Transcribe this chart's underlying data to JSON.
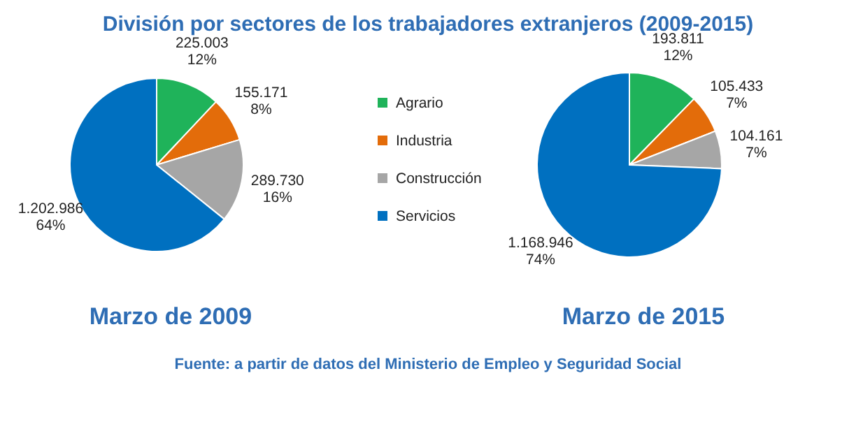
{
  "chart_data": [
    {
      "type": "pie",
      "title": "División por sectores de los trabajadores extranjeros (2009-2015)",
      "subtitle": "Marzo de 2009",
      "categories": [
        "Agrario",
        "Industria",
        "Construcción",
        "Servicios"
      ],
      "values": [
        225003,
        155171,
        289730,
        1202986
      ],
      "value_labels": [
        "225.003\n12%",
        "155.171\n8%",
        "289.730\n16%",
        "1.202.986\n64%"
      ],
      "colors": [
        "#1fb35a",
        "#e36c0a",
        "#a6a6a6",
        "#0070c0"
      ],
      "legend": "right"
    },
    {
      "type": "pie",
      "subtitle": "Marzo de 2015",
      "categories": [
        null,
        null,
        null,
        null
      ],
      "values": [
        193811,
        105433,
        104161,
        1168946
      ],
      "value_labels": [
        "193.811\n12%",
        "105.433\n7%",
        "104.161\n7%",
        "1.168.946\n74%"
      ],
      "colors": [
        "#1fb35a",
        "#e36c0a",
        "#a6a6a6",
        "#0070c0"
      ],
      "annotations": [
        "Fuente: a partir de datos del Ministerio de Empleo y Seguridad Social"
      ]
    }
  ]
}
